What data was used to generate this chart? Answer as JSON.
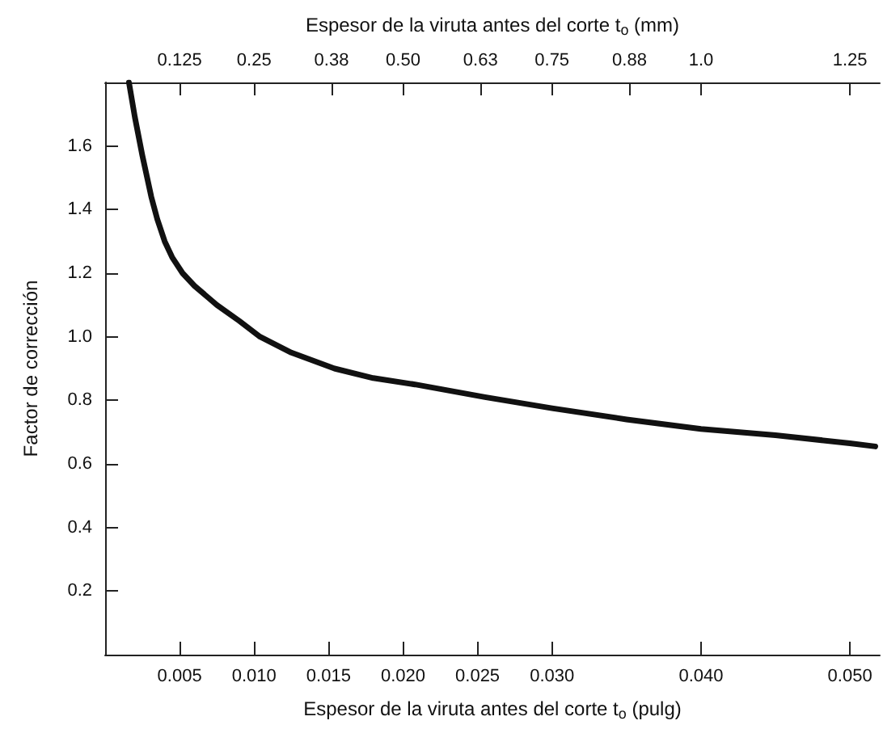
{
  "chart_data": {
    "type": "line",
    "xlabel": "Espesor de la viruta antes del corte t$_{o}$ (pulg)",
    "x2label": "Espesor de la viruta antes del corte t$_{o}$ (mm)",
    "ylabel": "Factor de corrección",
    "x": [
      0.0016,
      0.002,
      0.0025,
      0.0031,
      0.0035,
      0.004,
      0.0045,
      0.0052,
      0.006,
      0.0075,
      0.009,
      0.0104,
      0.0125,
      0.0154,
      0.018,
      0.0208,
      0.0255,
      0.03,
      0.035,
      0.04,
      0.045,
      0.05,
      0.0517
    ],
    "series": [
      {
        "color": "#111111",
        "values": [
          1.8,
          1.69,
          1.57,
          1.44,
          1.37,
          1.3,
          1.25,
          1.2,
          1.16,
          1.1,
          1.05,
          1.0,
          0.95,
          0.9,
          0.87,
          0.85,
          0.81,
          0.775,
          0.74,
          0.71,
          0.69,
          0.665,
          0.655
        ]
      }
    ],
    "xlim": [
      0,
      0.052
    ],
    "xticks": [
      {
        "value": 0.005,
        "label": "0.005"
      },
      {
        "value": 0.01,
        "label": "0.010"
      },
      {
        "value": 0.015,
        "label": "0.015"
      },
      {
        "value": 0.02,
        "label": "0.020"
      },
      {
        "value": 0.025,
        "label": "0.025"
      },
      {
        "value": 0.03,
        "label": "0.030"
      },
      {
        "value": 0.04,
        "label": "0.040"
      },
      {
        "value": 0.05,
        "label": "0.050"
      }
    ],
    "x2lim": [
      0,
      1.3
    ],
    "x2ticks": [
      0.125,
      0.25,
      0.38,
      {
        "value": 0.5,
        "label": "0.50"
      },
      0.63,
      0.75,
      0.88,
      {
        "value": 1,
        "label": "1.0"
      },
      1.25
    ],
    "ylim": [
      0,
      1.8
    ],
    "yticks": [
      0.2,
      0.4,
      0.6,
      0.8,
      {
        "value": 1,
        "label": "1.0"
      },
      1.2,
      1.4,
      1.6
    ],
    "grid": false,
    "marker": "none",
    "line_style": "solid"
  }
}
